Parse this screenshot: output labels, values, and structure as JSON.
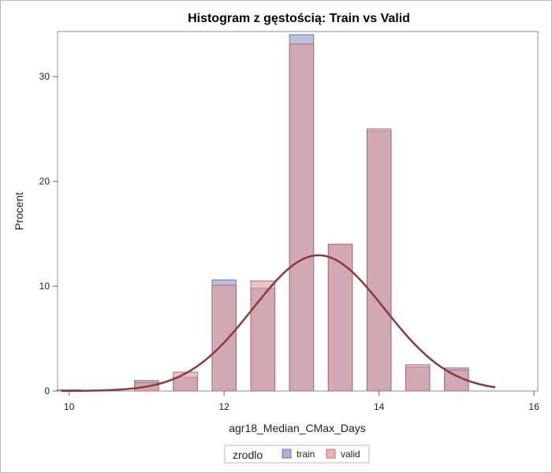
{
  "chart_data": {
    "type": "bar",
    "title": "Histogram z gęstością: Train vs Valid",
    "xlabel": "agr18_Median_CMax_Days",
    "ylabel": "Procent",
    "xlim": [
      9.85,
      16.05
    ],
    "ylim": [
      0,
      34.3
    ],
    "x_ticks": [
      10,
      12,
      14,
      16
    ],
    "y_ticks": [
      0,
      10,
      20,
      30
    ],
    "grid": false,
    "legend_position": "bottom-center",
    "bin_width": 0.5,
    "bin_centers": [
      10,
      10.5,
      11,
      11.5,
      12,
      12.5,
      13,
      13.5,
      14,
      14.5,
      15
    ],
    "series": [
      {
        "name": "train",
        "color": "#8e96c8",
        "values": [
          0.1,
          0.0,
          1.0,
          1.3,
          10.6,
          9.8,
          34.0,
          14.0,
          24.8,
          2.3,
          2.2
        ]
      },
      {
        "name": "valid",
        "color": "#e09a9a",
        "values": [
          0.1,
          0.0,
          0.8,
          1.8,
          10.1,
          10.5,
          33.1,
          14.0,
          25.0,
          2.5,
          2.0
        ]
      }
    ],
    "density": {
      "type": "normal",
      "color": "#8b3a3e",
      "mean": 13.22,
      "peak": 12.95,
      "sd": 0.85,
      "x_range": [
        9.9,
        15.5
      ]
    },
    "legend": {
      "title": "zrodlo",
      "entries": [
        "train",
        "valid"
      ]
    }
  }
}
